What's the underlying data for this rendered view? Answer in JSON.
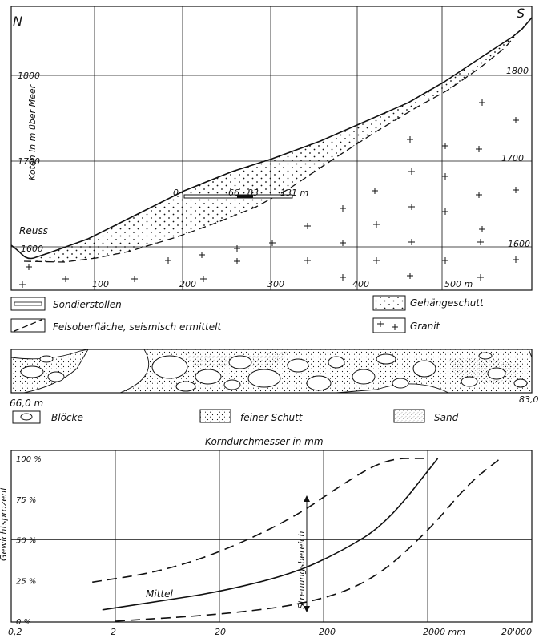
{
  "profile": {
    "north": "N",
    "south": "S",
    "ylabel": "Koten in m über Meer",
    "y_left_ticks": [
      "1800",
      "1700",
      "1600"
    ],
    "y_right_ticks": [
      "1800",
      "1700",
      "1600"
    ],
    "x_ticks": [
      "100",
      "200",
      "300",
      "400",
      "500 m"
    ],
    "reuss": "Reuss",
    "tunnel_labels": [
      "0",
      "66",
      "83",
      "131 m"
    ]
  },
  "legend": {
    "sondierstollen": "Sondierstollen",
    "felsoberflaeche": "Felsoberfläche, seismisch ermittelt",
    "gehaengeschutt": "Gehängeschutt",
    "granit": "Granit"
  },
  "section": {
    "start": "66,0 m",
    "end": "83,0",
    "bloecke": "Blöcke",
    "feiner_schutt": "feiner Schutt",
    "sand": "Sand"
  },
  "grain": {
    "title": "Korndurchmesser in mm",
    "ylabel": "Gewichtsprozent",
    "y_ticks": [
      "100 %",
      "75 %",
      "50 %",
      "25 %",
      "0 %"
    ],
    "x_ticks": [
      "0,2",
      "2",
      "20",
      "200",
      "2000 mm",
      "20'000"
    ],
    "mittel": "Mittel",
    "streuung": "Streuungsbereich"
  },
  "chart_data": {
    "type": "line",
    "title": "Korndurchmesser in mm",
    "xlabel": "Korndurchmesser in mm",
    "ylabel": "Gewichtsprozent",
    "x_scale": "log",
    "xlim": [
      0.2,
      20000
    ],
    "ylim": [
      0,
      100
    ],
    "grid": true,
    "series": [
      {
        "name": "Mittel",
        "x": [
          1.5,
          5,
          20,
          100,
          300,
          800,
          2500
        ],
        "y": [
          7,
          12,
          18,
          29,
          43,
          60,
          100
        ]
      },
      {
        "x": [
          1.2,
          5,
          20,
          100,
          300,
          800,
          2000
        ],
        "y": [
          24,
          30,
          42,
          63,
          84,
          100,
          100
        ]
      },
      {
        "x": [
          2,
          20,
          150,
          600,
          2000,
          5000,
          10000
        ],
        "y": [
          0,
          4,
          11,
          25,
          55,
          85,
          100
        ]
      }
    ]
  }
}
